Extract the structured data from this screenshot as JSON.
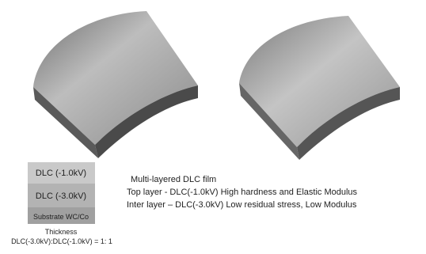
{
  "layer_stack": {
    "layers": [
      "DLC (-1.0kV)",
      "DLC (-3.0kV)",
      "Substrate WC/Co"
    ],
    "thickness_title": "Thickness",
    "thickness_ratio": "DLC(-3.0kV):DLC(-1.0kV) = 1: 1"
  },
  "description": {
    "title": "Multi-layered DLC film",
    "lines": [
      "Top layer  - DLC(-1.0kV)  High hardness and Elastic Modulus",
      "Inter layer – DLC(-3.0kV) Low residual stress, Low Modulus"
    ]
  }
}
